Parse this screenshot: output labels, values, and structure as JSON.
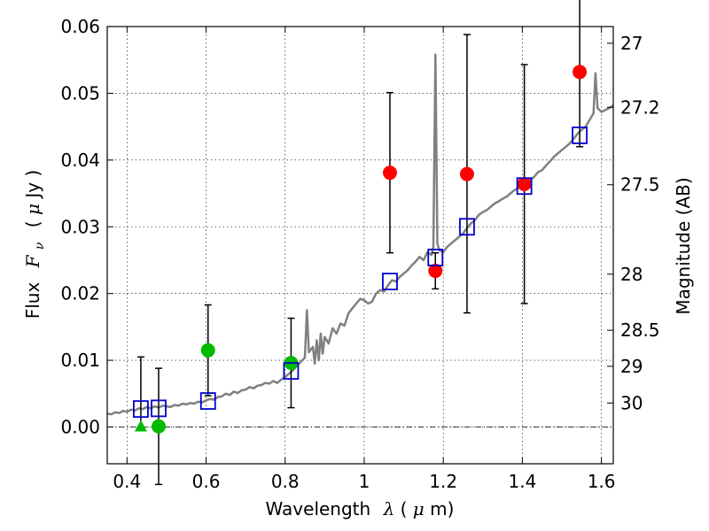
{
  "chart_data": {
    "type": "scatter",
    "xlabel_prefix": "Wavelength",
    "xlabel_symbol": "λ",
    "xlabel_units_open": " (",
    "xlabel_units_mu": "μ",
    "xlabel_units_close": "m)",
    "ylabel_prefix": "Flux",
    "ylabel_symbol": "F",
    "ylabel_sub": "ν",
    "ylabel_units_open": "( ",
    "ylabel_units_mu": "μ",
    "ylabel_units_close": "Jy )",
    "y2label": "Magnitude (AB)",
    "xlim": [
      0.35,
      1.63
    ],
    "ylim": [
      -0.0055,
      0.06
    ],
    "grid": true,
    "x_ticks": [
      0.4,
      0.6,
      0.8,
      1.0,
      1.2,
      1.4,
      1.6
    ],
    "x_tick_labels": [
      "0.4",
      "0.6",
      "0.8",
      "1",
      "1.2",
      "1.4",
      "1.6"
    ],
    "y_ticks": [
      0.0,
      0.01,
      0.02,
      0.03,
      0.04,
      0.05,
      0.06
    ],
    "y_tick_labels": [
      "0.00",
      "0.01",
      "0.02",
      "0.03",
      "0.04",
      "0.05",
      "0.06"
    ],
    "mag_ticks": [
      {
        "label": "27",
        "flux": 0.0575
      },
      {
        "label": "27.2",
        "flux": 0.0479
      },
      {
        "label": "27.5",
        "flux": 0.0363
      },
      {
        "label": "28",
        "flux": 0.0229
      },
      {
        "label": "28.5",
        "flux": 0.0145
      },
      {
        "label": "29",
        "flux": 0.0091
      },
      {
        "label": "30",
        "flux": 0.0036
      }
    ],
    "series": [
      {
        "name": "observed optical (green)",
        "color": "#00bb00",
        "marker": "circle",
        "points": [
          {
            "x": 0.48,
            "y": 0.0001,
            "yerr": [
              0.0087,
              0.0087
            ]
          },
          {
            "x": 0.605,
            "y": 0.0115,
            "yerr": [
              0.0068,
              0.0068
            ]
          },
          {
            "x": 0.815,
            "y": 0.0096,
            "yerr": [
              0.0067,
              0.0067
            ]
          }
        ]
      },
      {
        "name": "upper limit (green triangle)",
        "color": "#00bb00",
        "marker": "triangle",
        "points": [
          {
            "x": 0.435,
            "y": 0.0,
            "yerr": [
              0.0,
              0.0105
            ]
          }
        ]
      },
      {
        "name": "observed NIR (red)",
        "color": "#ff0000",
        "marker": "circle",
        "points": [
          {
            "x": 1.065,
            "y": 0.0381,
            "yerr": [
              0.012,
              0.012
            ]
          },
          {
            "x": 1.18,
            "y": 0.0234,
            "yerr": [
              0.0027,
              0.0027
            ]
          },
          {
            "x": 1.26,
            "y": 0.0379,
            "yerr": [
              0.0208,
              0.0209
            ]
          },
          {
            "x": 1.405,
            "y": 0.0364,
            "yerr": [
              0.0179,
              0.0179
            ]
          },
          {
            "x": 1.545,
            "y": 0.0532,
            "yerr": [
              0.0112,
              0.0112
            ]
          }
        ]
      },
      {
        "name": "model synthetic photometry (blue squares)",
        "color": "#0000cc",
        "marker": "square",
        "points": [
          {
            "x": 0.435,
            "y": 0.0027
          },
          {
            "x": 0.48,
            "y": 0.0028
          },
          {
            "x": 0.605,
            "y": 0.0039
          },
          {
            "x": 0.815,
            "y": 0.0084
          },
          {
            "x": 1.065,
            "y": 0.0218
          },
          {
            "x": 1.18,
            "y": 0.0254
          },
          {
            "x": 1.26,
            "y": 0.03
          },
          {
            "x": 1.405,
            "y": 0.0361
          },
          {
            "x": 1.545,
            "y": 0.0437
          }
        ]
      },
      {
        "name": "model SED (gray line)",
        "color": "#808080",
        "marker": "line",
        "points": [
          [
            0.35,
            0.002
          ],
          [
            0.36,
            0.0019
          ],
          [
            0.37,
            0.0022
          ],
          [
            0.38,
            0.0021
          ],
          [
            0.39,
            0.0024
          ],
          [
            0.4,
            0.0023
          ],
          [
            0.41,
            0.0026
          ],
          [
            0.42,
            0.0025
          ],
          [
            0.43,
            0.0028
          ],
          [
            0.44,
            0.0027
          ],
          [
            0.45,
            0.003
          ],
          [
            0.46,
            0.0028
          ],
          [
            0.47,
            0.0031
          ],
          [
            0.48,
            0.0029
          ],
          [
            0.49,
            0.0032
          ],
          [
            0.5,
            0.0031
          ],
          [
            0.51,
            0.003
          ],
          [
            0.52,
            0.0033
          ],
          [
            0.53,
            0.0032
          ],
          [
            0.54,
            0.0035
          ],
          [
            0.55,
            0.0034
          ],
          [
            0.56,
            0.0036
          ],
          [
            0.57,
            0.0035
          ],
          [
            0.58,
            0.0038
          ],
          [
            0.59,
            0.0037
          ],
          [
            0.6,
            0.004
          ],
          [
            0.61,
            0.0042
          ],
          [
            0.62,
            0.0041
          ],
          [
            0.63,
            0.0045
          ],
          [
            0.64,
            0.0046
          ],
          [
            0.65,
            0.005
          ],
          [
            0.66,
            0.0048
          ],
          [
            0.67,
            0.0053
          ],
          [
            0.68,
            0.0051
          ],
          [
            0.69,
            0.0055
          ],
          [
            0.7,
            0.0056
          ],
          [
            0.71,
            0.006
          ],
          [
            0.72,
            0.0058
          ],
          [
            0.73,
            0.0062
          ],
          [
            0.74,
            0.0063
          ],
          [
            0.75,
            0.0066
          ],
          [
            0.76,
            0.0065
          ],
          [
            0.77,
            0.0069
          ],
          [
            0.78,
            0.0066
          ],
          [
            0.79,
            0.0071
          ],
          [
            0.8,
            0.0075
          ],
          [
            0.81,
            0.008
          ],
          [
            0.82,
            0.0085
          ],
          [
            0.83,
            0.0092
          ],
          [
            0.84,
            0.0098
          ],
          [
            0.85,
            0.0104
          ],
          [
            0.855,
            0.0175
          ],
          [
            0.86,
            0.0112
          ],
          [
            0.87,
            0.012
          ],
          [
            0.875,
            0.0095
          ],
          [
            0.88,
            0.013
          ],
          [
            0.885,
            0.01
          ],
          [
            0.89,
            0.014
          ],
          [
            0.895,
            0.011
          ],
          [
            0.9,
            0.0135
          ],
          [
            0.91,
            0.0125
          ],
          [
            0.92,
            0.0148
          ],
          [
            0.93,
            0.014
          ],
          [
            0.94,
            0.0155
          ],
          [
            0.95,
            0.0152
          ],
          [
            0.96,
            0.017
          ],
          [
            0.97,
            0.0178
          ],
          [
            0.98,
            0.0185
          ],
          [
            0.99,
            0.0192
          ],
          [
            1.0,
            0.019
          ],
          [
            1.01,
            0.0185
          ],
          [
            1.02,
            0.0188
          ],
          [
            1.03,
            0.02
          ],
          [
            1.04,
            0.0205
          ],
          [
            1.05,
            0.0203
          ],
          [
            1.06,
            0.0212
          ],
          [
            1.07,
            0.022
          ],
          [
            1.08,
            0.0218
          ],
          [
            1.09,
            0.0225
          ],
          [
            1.1,
            0.023
          ],
          [
            1.11,
            0.0235
          ],
          [
            1.12,
            0.0242
          ],
          [
            1.13,
            0.0248
          ],
          [
            1.14,
            0.0255
          ],
          [
            1.15,
            0.025
          ],
          [
            1.16,
            0.0262
          ],
          [
            1.17,
            0.0258
          ],
          [
            1.175,
            0.027
          ],
          [
            1.18,
            0.0558
          ],
          [
            1.185,
            0.0275
          ],
          [
            1.19,
            0.0265
          ],
          [
            1.2,
            0.0262
          ],
          [
            1.21,
            0.027
          ],
          [
            1.22,
            0.0275
          ],
          [
            1.23,
            0.028
          ],
          [
            1.24,
            0.0285
          ],
          [
            1.25,
            0.029
          ],
          [
            1.26,
            0.0298
          ],
          [
            1.27,
            0.0305
          ],
          [
            1.28,
            0.031
          ],
          [
            1.29,
            0.0318
          ],
          [
            1.3,
            0.0322
          ],
          [
            1.31,
            0.0325
          ],
          [
            1.32,
            0.033
          ],
          [
            1.33,
            0.0335
          ],
          [
            1.34,
            0.0338
          ],
          [
            1.35,
            0.0342
          ],
          [
            1.36,
            0.0345
          ],
          [
            1.37,
            0.035
          ],
          [
            1.38,
            0.0355
          ],
          [
            1.39,
            0.0358
          ],
          [
            1.4,
            0.0362
          ],
          [
            1.41,
            0.0366
          ],
          [
            1.42,
            0.037
          ],
          [
            1.43,
            0.0375
          ],
          [
            1.44,
            0.0382
          ],
          [
            1.45,
            0.0385
          ],
          [
            1.46,
            0.0392
          ],
          [
            1.47,
            0.0398
          ],
          [
            1.48,
            0.0405
          ],
          [
            1.49,
            0.041
          ],
          [
            1.5,
            0.0415
          ],
          [
            1.51,
            0.042
          ],
          [
            1.52,
            0.0425
          ],
          [
            1.53,
            0.0432
          ],
          [
            1.54,
            0.044
          ],
          [
            1.55,
            0.0445
          ],
          [
            1.56,
            0.045
          ],
          [
            1.57,
            0.046
          ],
          [
            1.58,
            0.047
          ],
          [
            1.585,
            0.053
          ],
          [
            1.59,
            0.0478
          ],
          [
            1.6,
            0.0472
          ],
          [
            1.61,
            0.0475
          ],
          [
            1.62,
            0.0478
          ],
          [
            1.63,
            0.0482
          ]
        ]
      }
    ]
  }
}
